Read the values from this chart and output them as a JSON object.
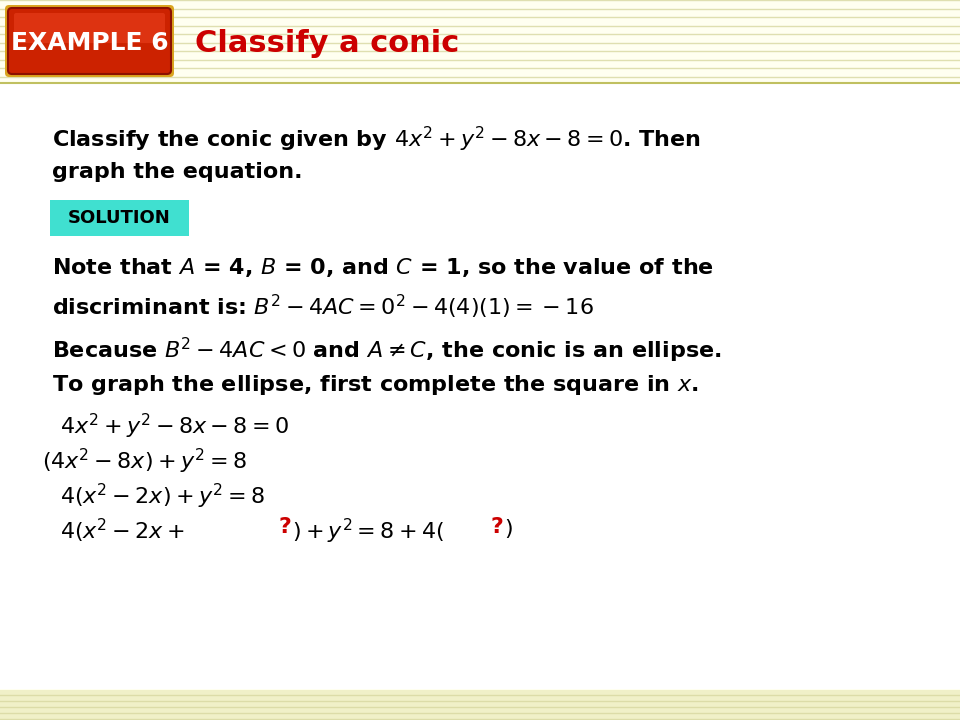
{
  "bg_color": "#FFFFF0",
  "stripe_color": "#E8E8C0",
  "title_text": "Classify a conic",
  "title_color": "#CC0000",
  "example_label": "EXAMPLE 6",
  "example_bg": "#CC2200",
  "example_text_color": "#FFFFFF",
  "solution_bg": "#40E0D0",
  "solution_text": "SOLUTION",
  "body_text_color": "#000000",
  "question_color": "#CC0000",
  "gold_color": "#DAA520",
  "header_stripe_color": "#D8D8A0",
  "bottom_stripe_color": "#F0F0C8"
}
